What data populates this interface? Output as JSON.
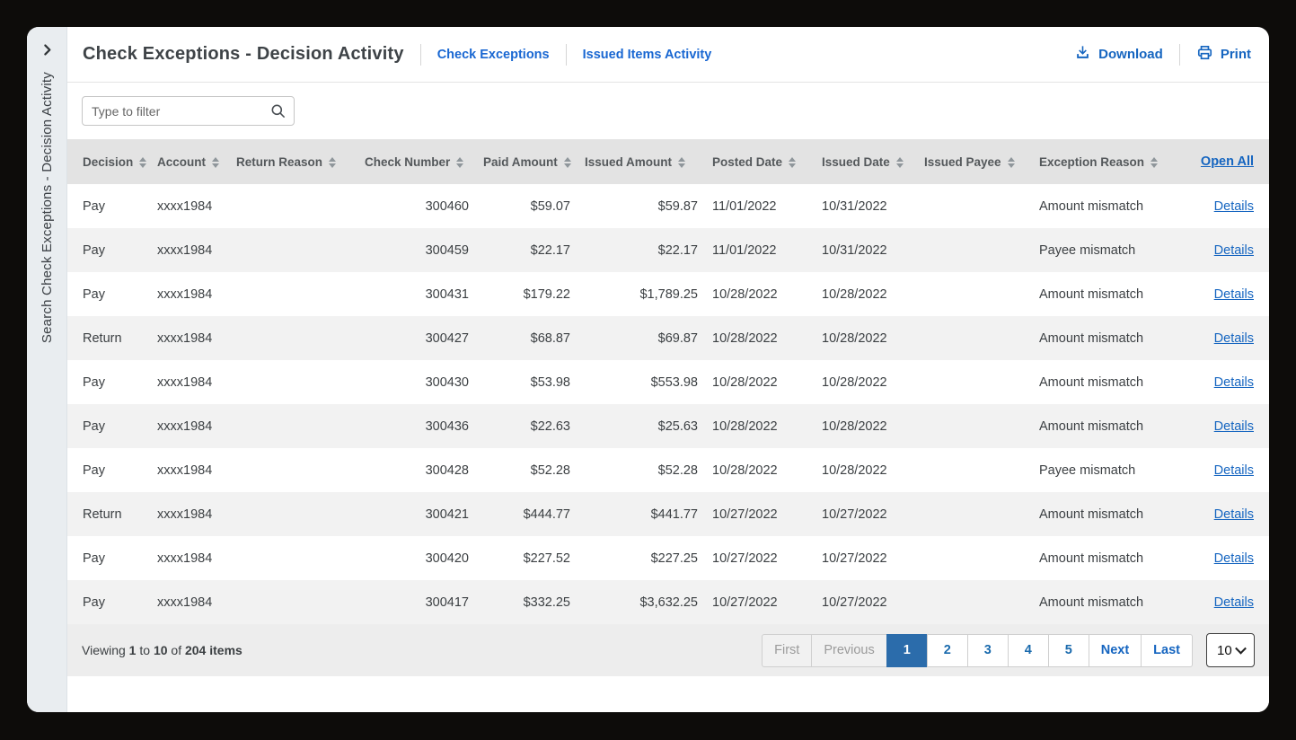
{
  "window": {
    "sidebar": {
      "label": "Search Check Exceptions - Decision Activity",
      "toggle_icon": "chevron-right-icon"
    },
    "header": {
      "title": "Check Exceptions - Decision Activity",
      "nav_links": [
        {
          "label": "Check Exceptions"
        },
        {
          "label": "Issued Items Activity"
        }
      ],
      "actions": [
        {
          "label": "Download",
          "icon": "download-icon"
        },
        {
          "label": "Print",
          "icon": "print-icon"
        }
      ]
    },
    "filter": {
      "placeholder": "Type to filter",
      "value": "",
      "icon": "search-icon"
    },
    "table": {
      "columns": [
        {
          "label": "Decision",
          "sortable": true
        },
        {
          "label": "Account",
          "sortable": true
        },
        {
          "label": "Return Reason",
          "sortable": true
        },
        {
          "label": "Check Number",
          "sortable": true
        },
        {
          "label": "Paid Amount",
          "sortable": true
        },
        {
          "label": "Issued Amount",
          "sortable": true
        },
        {
          "label": "Posted Date",
          "sortable": true
        },
        {
          "label": "Issued Date",
          "sortable": true
        },
        {
          "label": "Issued Payee",
          "sortable": true
        },
        {
          "label": "Exception Reason",
          "sortable": true
        },
        {
          "label": "Open All",
          "sortable": false,
          "is_link": true
        }
      ],
      "row_keys": [
        "decision",
        "account",
        "return_reason",
        "check_number",
        "paid_amount",
        "issued_amount",
        "posted_date",
        "issued_date",
        "issued_payee",
        "exception_reason",
        "action"
      ],
      "rows": [
        {
          "decision": "Pay",
          "account": "xxxx1984",
          "return_reason": "",
          "check_number": "300460",
          "paid_amount": "$59.07",
          "issued_amount": "$59.87",
          "posted_date": "11/01/2022",
          "issued_date": "10/31/2022",
          "issued_payee": "",
          "exception_reason": "Amount mismatch",
          "action": "Details"
        },
        {
          "decision": "Pay",
          "account": "xxxx1984",
          "return_reason": "",
          "check_number": "300459",
          "paid_amount": "$22.17",
          "issued_amount": "$22.17",
          "posted_date": "11/01/2022",
          "issued_date": "10/31/2022",
          "issued_payee": "",
          "exception_reason": "Payee mismatch",
          "action": "Details"
        },
        {
          "decision": "Pay",
          "account": "xxxx1984",
          "return_reason": "",
          "check_number": "300431",
          "paid_amount": "$179.22",
          "issued_amount": "$1,789.25",
          "posted_date": "10/28/2022",
          "issued_date": "10/28/2022",
          "issued_payee": "",
          "exception_reason": "Amount mismatch",
          "action": "Details"
        },
        {
          "decision": "Return",
          "account": "xxxx1984",
          "return_reason": "",
          "check_number": "300427",
          "paid_amount": "$68.87",
          "issued_amount": "$69.87",
          "posted_date": "10/28/2022",
          "issued_date": "10/28/2022",
          "issued_payee": "",
          "exception_reason": "Amount mismatch",
          "action": "Details"
        },
        {
          "decision": "Pay",
          "account": "xxxx1984",
          "return_reason": "",
          "check_number": "300430",
          "paid_amount": "$53.98",
          "issued_amount": "$553.98",
          "posted_date": "10/28/2022",
          "issued_date": "10/28/2022",
          "issued_payee": "",
          "exception_reason": "Amount mismatch",
          "action": "Details"
        },
        {
          "decision": "Pay",
          "account": "xxxx1984",
          "return_reason": "",
          "check_number": "300436",
          "paid_amount": "$22.63",
          "issued_amount": "$25.63",
          "posted_date": "10/28/2022",
          "issued_date": "10/28/2022",
          "issued_payee": "",
          "exception_reason": "Amount mismatch",
          "action": "Details"
        },
        {
          "decision": "Pay",
          "account": "xxxx1984",
          "return_reason": "",
          "check_number": "300428",
          "paid_amount": "$52.28",
          "issued_amount": "$52.28",
          "posted_date": "10/28/2022",
          "issued_date": "10/28/2022",
          "issued_payee": "",
          "exception_reason": "Payee mismatch",
          "action": "Details"
        },
        {
          "decision": "Return",
          "account": "xxxx1984",
          "return_reason": "",
          "check_number": "300421",
          "paid_amount": "$444.77",
          "issued_amount": "$441.77",
          "posted_date": "10/27/2022",
          "issued_date": "10/27/2022",
          "issued_payee": "",
          "exception_reason": "Amount mismatch",
          "action": "Details"
        },
        {
          "decision": "Pay",
          "account": "xxxx1984",
          "return_reason": "",
          "check_number": "300420",
          "paid_amount": "$227.52",
          "issued_amount": "$227.25",
          "posted_date": "10/27/2022",
          "issued_date": "10/27/2022",
          "issued_payee": "",
          "exception_reason": "Amount mismatch",
          "action": "Details"
        },
        {
          "decision": "Pay",
          "account": "xxxx1984",
          "return_reason": "",
          "check_number": "300417",
          "paid_amount": "$332.25",
          "issued_amount": "$3,632.25",
          "posted_date": "10/27/2022",
          "issued_date": "10/27/2022",
          "issued_payee": "",
          "exception_reason": "Amount mismatch",
          "action": "Details"
        }
      ]
    },
    "footer": {
      "viewing": [
        {
          "text": "Viewing "
        },
        {
          "text": "1",
          "bold": true
        },
        {
          "text": " to "
        },
        {
          "text": "10",
          "bold": true
        },
        {
          "text": " of "
        },
        {
          "text": "204 items",
          "bold": true
        }
      ],
      "pagination": [
        {
          "label": "First",
          "state": "disabled"
        },
        {
          "label": "Previous",
          "state": "disabled"
        },
        {
          "label": "1",
          "state": "active"
        },
        {
          "label": "2",
          "state": "page"
        },
        {
          "label": "3",
          "state": "page"
        },
        {
          "label": "4",
          "state": "page"
        },
        {
          "label": "5",
          "state": "page"
        },
        {
          "label": "Next",
          "state": "nav"
        },
        {
          "label": "Last",
          "state": "nav"
        }
      ],
      "page_size": {
        "selected": "10"
      }
    },
    "colors": {
      "link_blue": "#1565c0",
      "nav_link_blue": "#1967d2",
      "active_page_bg": "#2b6cab",
      "sidebar_bg": "#e9edf0",
      "table_header_bg": "#e3e3e3",
      "alt_row_bg": "#f2f2f2",
      "footer_bg": "#ededed"
    }
  }
}
